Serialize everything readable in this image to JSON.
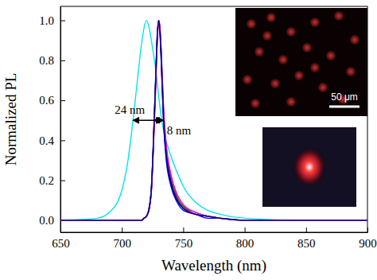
{
  "chart_data": {
    "type": "line",
    "x_label": "Wavelength (nm)",
    "y_label": "Normalized PL",
    "x": [
      650,
      680,
      690,
      700,
      705,
      710,
      713,
      716,
      718,
      720,
      722,
      724,
      727,
      729,
      730,
      731,
      732,
      734,
      736,
      740,
      745,
      750,
      760,
      770,
      780,
      800,
      850,
      900
    ],
    "series": [
      {
        "color": "#00e5ee",
        "values": [
          0,
          0.01,
          0.04,
          0.15,
          0.3,
          0.55,
          0.72,
          0.88,
          0.96,
          1.0,
          0.97,
          0.9,
          0.78,
          0.68,
          0.62,
          0.57,
          0.52,
          0.45,
          0.4,
          0.32,
          0.24,
          0.17,
          0.09,
          0.05,
          0.03,
          0.01,
          0,
          0
        ]
      },
      {
        "color": "#000000",
        "values": [
          0,
          0,
          0,
          0,
          0,
          0,
          0,
          0,
          0.01,
          0.02,
          0.05,
          0.15,
          0.6,
          0.93,
          1.0,
          0.95,
          0.82,
          0.5,
          0.33,
          0.18,
          0.1,
          0.06,
          0.03,
          0.02,
          0.01,
          0,
          0,
          0
        ]
      },
      {
        "color": "#ff0000",
        "values": [
          0,
          0,
          0,
          0,
          0,
          0,
          0,
          0,
          0.01,
          0.02,
          0.05,
          0.14,
          0.58,
          0.92,
          1.0,
          0.96,
          0.84,
          0.53,
          0.36,
          0.2,
          0.11,
          0.07,
          0.03,
          0.02,
          0.01,
          0,
          0,
          0
        ]
      },
      {
        "color": "#0000ff",
        "values": [
          0,
          0,
          0,
          0,
          0,
          0,
          0,
          0,
          0.01,
          0.02,
          0.06,
          0.16,
          0.62,
          0.95,
          1.0,
          0.94,
          0.8,
          0.48,
          0.31,
          0.17,
          0.09,
          0.05,
          0.03,
          0.01,
          0.01,
          0,
          0,
          0
        ]
      },
      {
        "color": "#008000",
        "values": [
          0,
          0,
          0,
          0,
          0,
          0,
          0,
          0,
          0.01,
          0.02,
          0.05,
          0.15,
          0.6,
          0.93,
          1.0,
          0.96,
          0.85,
          0.55,
          0.38,
          0.22,
          0.12,
          0.07,
          0.04,
          0.02,
          0.01,
          0,
          0,
          0
        ]
      },
      {
        "color": "#ff00ff",
        "values": [
          0,
          0,
          0,
          0,
          0,
          0,
          0,
          0,
          0.01,
          0.02,
          0.05,
          0.14,
          0.57,
          0.91,
          1.0,
          0.97,
          0.86,
          0.56,
          0.39,
          0.23,
          0.13,
          0.08,
          0.04,
          0.02,
          0.01,
          0,
          0,
          0
        ]
      },
      {
        "color": "#000080",
        "values": [
          0,
          0,
          0,
          0,
          0,
          0,
          0,
          0,
          0.01,
          0.02,
          0.05,
          0.15,
          0.61,
          0.94,
          1.0,
          0.95,
          0.83,
          0.51,
          0.34,
          0.19,
          0.1,
          0.06,
          0.03,
          0.02,
          0.01,
          0,
          0,
          0
        ]
      }
    ],
    "xlim": [
      650,
      900
    ],
    "xticks": [
      650,
      700,
      750,
      800,
      850,
      900
    ],
    "ylim": [
      -0.06,
      1.07
    ],
    "yticks": [
      {
        "value": 0,
        "label": "0.0"
      },
      {
        "value": 0.2,
        "label": "0.2"
      },
      {
        "value": 0.4,
        "label": "0.4"
      },
      {
        "value": 0.6,
        "label": "0.6"
      },
      {
        "value": 0.8,
        "label": "0.8"
      },
      {
        "value": 1.0,
        "label": "1.0"
      }
    ],
    "annotations": [
      {
        "text": "24 nm",
        "x": [
          709,
          733
        ],
        "y": 0.5
      },
      {
        "text": "8 nm",
        "x": [
          726,
          734
        ],
        "y": 0.5
      }
    ],
    "scale_bar_label": "50 μm"
  }
}
